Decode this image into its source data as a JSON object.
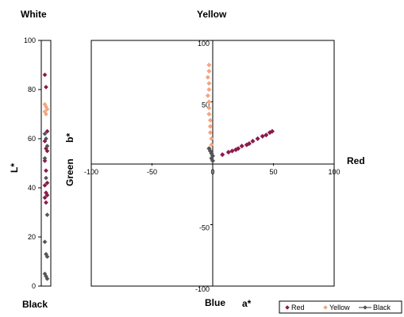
{
  "chart_data": [
    {
      "type": "scatter",
      "panel": "lightness",
      "top_label": "White",
      "bottom_label": "Black",
      "ylabel": "L*",
      "ylim": [
        0,
        100
      ],
      "yticks": [
        "0",
        "20",
        "40",
        "60",
        "80",
        "100"
      ],
      "series": [
        {
          "name": "Red",
          "color": "#8b1a4a",
          "values": [
            86,
            81,
            63,
            59,
            56,
            55,
            51,
            47,
            42,
            41,
            38,
            37,
            36,
            34
          ]
        },
        {
          "name": "Yellow",
          "color": "#f4a582",
          "values": [
            74,
            73,
            72,
            71,
            70
          ]
        },
        {
          "name": "Black",
          "color": "#555555",
          "values": [
            62,
            60,
            57,
            52,
            44,
            29,
            18,
            13,
            12,
            5,
            4,
            3
          ]
        }
      ]
    },
    {
      "type": "scatter",
      "panel": "chromaticity",
      "top_label": "Yellow",
      "bottom_label": "Blue",
      "left_label": "Green",
      "right_label": "Red",
      "xlabel": "a*",
      "ylabel": "b*",
      "xlim": [
        -100,
        100
      ],
      "ylim": [
        -100,
        100
      ],
      "xticks": [
        "-100",
        "-50",
        "0",
        "50",
        "100"
      ],
      "yticks": [
        "100",
        "50",
        "-50",
        "-100"
      ],
      "series": [
        {
          "name": "Red",
          "color": "#8b1a4a",
          "marker": "diamond",
          "points": [
            [
              8,
              7
            ],
            [
              13,
              9
            ],
            [
              16,
              10
            ],
            [
              19,
              11
            ],
            [
              21,
              12
            ],
            [
              24,
              14
            ],
            [
              28,
              15
            ],
            [
              30,
              16
            ],
            [
              33,
              18
            ],
            [
              37,
              20
            ],
            [
              41,
              22
            ],
            [
              44,
              23
            ],
            [
              47,
              25
            ],
            [
              49,
              26
            ]
          ]
        },
        {
          "name": "Yellow",
          "color": "#f4a582",
          "marker": "diamond",
          "points": [
            [
              -3,
              80
            ],
            [
              -3,
              75
            ],
            [
              -4,
              70
            ],
            [
              -3,
              65
            ],
            [
              -3,
              60
            ],
            [
              -4,
              55
            ],
            [
              -3,
              50
            ],
            [
              -3,
              45
            ],
            [
              -3,
              40
            ],
            [
              -2,
              35
            ],
            [
              -2,
              30
            ],
            [
              -2,
              25
            ],
            [
              -1,
              20
            ],
            [
              -1,
              15
            ]
          ]
        },
        {
          "name": "Black",
          "color": "#555555",
          "marker": "diamond",
          "points": [
            [
              -3,
              12
            ],
            [
              -2,
              10
            ],
            [
              -1,
              8
            ],
            [
              0,
              6
            ],
            [
              -1,
              4
            ],
            [
              0,
              2
            ]
          ]
        }
      ]
    }
  ],
  "legend": {
    "items": [
      {
        "name": "Red",
        "color": "#8b1a4a"
      },
      {
        "name": "Yellow",
        "color": "#f4a582"
      },
      {
        "name": "Black",
        "color": "#555555"
      }
    ]
  }
}
